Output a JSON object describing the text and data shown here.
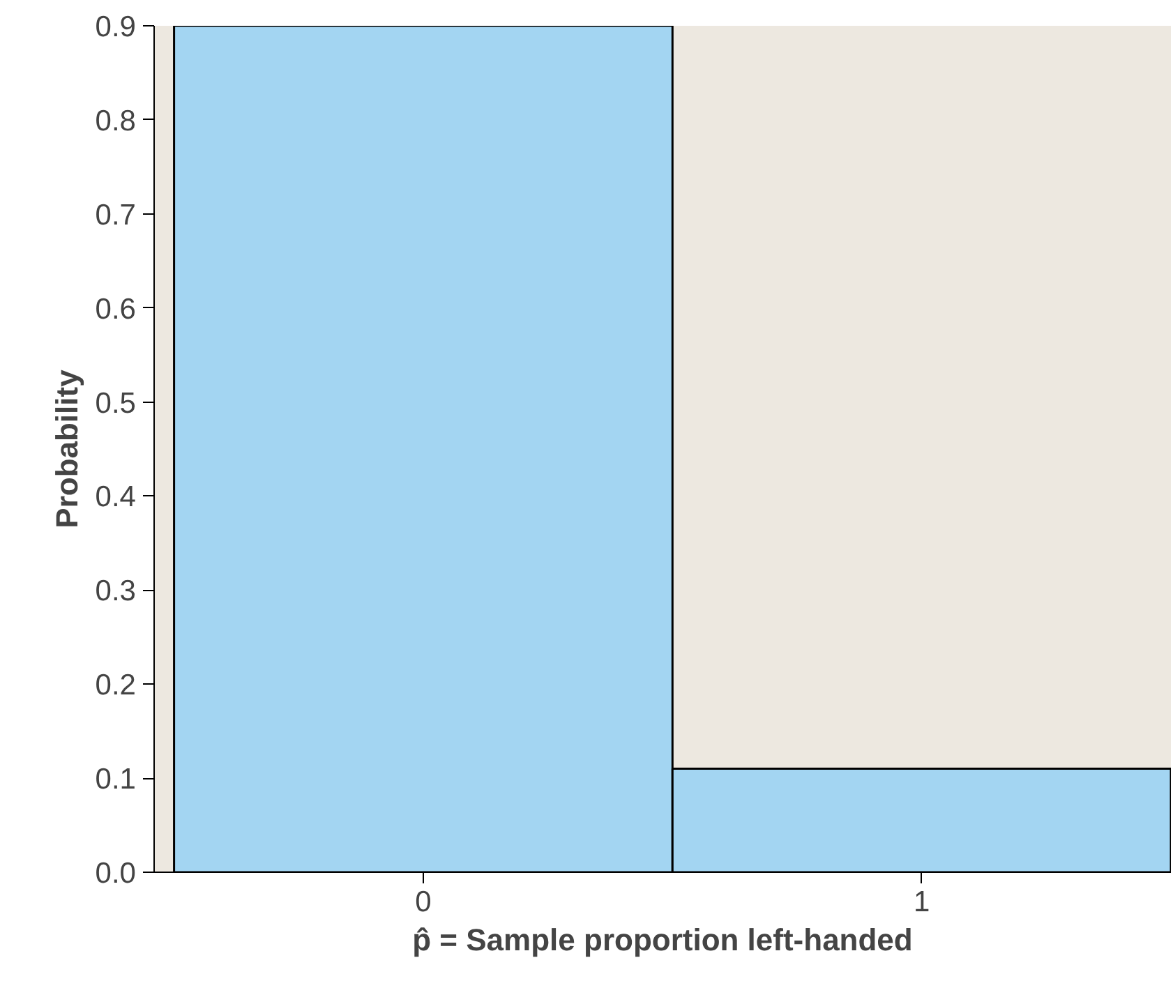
{
  "chart_data": {
    "type": "histogram",
    "xlabel": "p̂ = Sample proportion left-handed",
    "ylabel": "Probability",
    "bins": [
      -0.5,
      0.5,
      1.5
    ],
    "values": [
      0.9,
      0.11
    ],
    "color": "#a3d5f2",
    "xlim": [
      -0.54,
      1.5
    ],
    "ylim": [
      0,
      0.9
    ],
    "xticks": [
      0,
      1
    ],
    "yticks": [
      {
        "value": 0,
        "label": "0.0"
      },
      {
        "value": 0.1,
        "label": "0.1"
      },
      {
        "value": 0.2,
        "label": "0.2"
      },
      {
        "value": 0.3,
        "label": "0.3"
      },
      {
        "value": 0.4,
        "label": "0.4"
      },
      {
        "value": 0.5,
        "label": "0.5"
      },
      {
        "value": 0.6,
        "label": "0.6"
      },
      {
        "value": 0.7,
        "label": "0.7"
      },
      {
        "value": 0.8,
        "label": "0.8"
      },
      {
        "value": 0.9,
        "label": "0.9"
      }
    ],
    "grid": false
  }
}
